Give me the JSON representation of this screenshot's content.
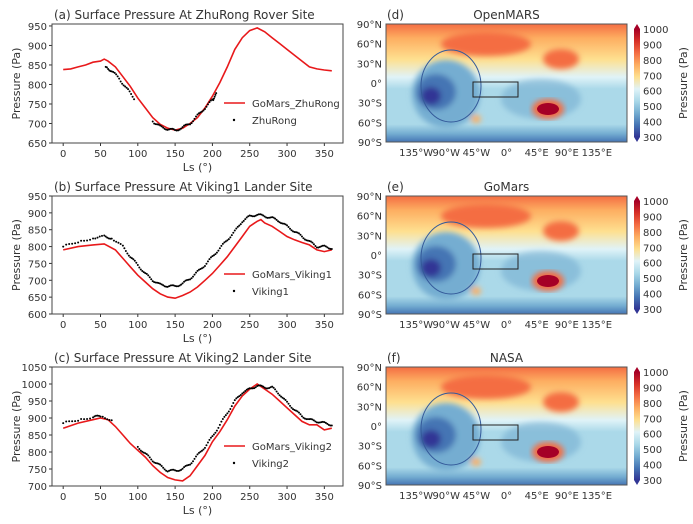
{
  "chart_data": [
    {
      "type": "line",
      "panel": "(a)",
      "title": "Surface Pressure At ZhuRong Rover Site",
      "xlabel": "Ls (°)",
      "ylabel": "Pressure (Pa)",
      "xlim": [
        -15,
        375
      ],
      "ylim": [
        650,
        955
      ],
      "xticks": [
        0,
        50,
        100,
        150,
        200,
        250,
        300,
        350
      ],
      "yticks": [
        650,
        700,
        750,
        800,
        850,
        900,
        950
      ],
      "legend": "lower-right",
      "series": [
        {
          "name": "GoMars_ZhuRong",
          "style": "line",
          "color": "#e8191b",
          "points": [
            [
              0,
              838
            ],
            [
              10,
              840
            ],
            [
              20,
              845
            ],
            [
              30,
              850
            ],
            [
              40,
              857
            ],
            [
              50,
              860
            ],
            [
              55,
              865
            ],
            [
              60,
              860
            ],
            [
              70,
              845
            ],
            [
              80,
              820
            ],
            [
              90,
              795
            ],
            [
              100,
              765
            ],
            [
              110,
              740
            ],
            [
              120,
              715
            ],
            [
              130,
              698
            ],
            [
              140,
              688
            ],
            [
              150,
              683
            ],
            [
              160,
              688
            ],
            [
              170,
              700
            ],
            [
              180,
              715
            ],
            [
              190,
              740
            ],
            [
              200,
              770
            ],
            [
              210,
              805
            ],
            [
              220,
              845
            ],
            [
              230,
              890
            ],
            [
              240,
              920
            ],
            [
              250,
              938
            ],
            [
              260,
              945
            ],
            [
              270,
              935
            ],
            [
              280,
              920
            ],
            [
              290,
              905
            ],
            [
              300,
              890
            ],
            [
              310,
              875
            ],
            [
              320,
              860
            ],
            [
              330,
              845
            ],
            [
              340,
              840
            ],
            [
              350,
              837
            ],
            [
              360,
              835
            ]
          ]
        },
        {
          "name": "ZhuRong",
          "style": "dots",
          "color": "#000000",
          "points": [
            [
              57,
              845
            ],
            [
              65,
              835
            ],
            [
              75,
              815
            ],
            [
              85,
              790
            ],
            [
              95,
              765
            ],
            [
              null,
              null
            ],
            [
              120,
              705
            ],
            [
              130,
              692
            ],
            [
              140,
              686
            ],
            [
              150,
              682
            ],
            [
              160,
              690
            ],
            [
              170,
              700
            ],
            [
              180,
              720
            ],
            [
              190,
              740
            ],
            [
              200,
              760
            ],
            [
              205,
              775
            ]
          ]
        }
      ]
    },
    {
      "type": "line",
      "panel": "(b)",
      "title": "Surface Pressure At Viking1 Lander Site",
      "xlabel": "Ls (°)",
      "ylabel": "Pressure (Pa)",
      "xlim": [
        -15,
        375
      ],
      "ylim": [
        600,
        950
      ],
      "xticks": [
        0,
        50,
        100,
        150,
        200,
        250,
        300,
        350
      ],
      "yticks": [
        600,
        650,
        700,
        750,
        800,
        850,
        900,
        950
      ],
      "legend": "lower-right",
      "series": [
        {
          "name": "GoMars_Viking1",
          "style": "line",
          "color": "#e8191b",
          "points": [
            [
              0,
              790
            ],
            [
              20,
              800
            ],
            [
              40,
              805
            ],
            [
              55,
              808
            ],
            [
              70,
              790
            ],
            [
              80,
              765
            ],
            [
              90,
              740
            ],
            [
              100,
              715
            ],
            [
              110,
              695
            ],
            [
              120,
              675
            ],
            [
              130,
              660
            ],
            [
              140,
              650
            ],
            [
              150,
              647
            ],
            [
              160,
              655
            ],
            [
              170,
              665
            ],
            [
              180,
              680
            ],
            [
              190,
              700
            ],
            [
              200,
              720
            ],
            [
              210,
              745
            ],
            [
              220,
              770
            ],
            [
              230,
              800
            ],
            [
              240,
              830
            ],
            [
              250,
              860
            ],
            [
              260,
              875
            ],
            [
              265,
              880
            ],
            [
              270,
              870
            ],
            [
              280,
              860
            ],
            [
              290,
              845
            ],
            [
              300,
              830
            ],
            [
              310,
              820
            ],
            [
              320,
              812
            ],
            [
              330,
              805
            ],
            [
              340,
              790
            ],
            [
              350,
              785
            ],
            [
              360,
              790
            ]
          ]
        },
        {
          "name": "Viking1",
          "style": "dots",
          "color": "#000000",
          "points": [
            [
              0,
              800
            ],
            [
              20,
              815
            ],
            [
              40,
              825
            ],
            [
              55,
              830
            ],
            [
              65,
              825
            ],
            [
              80,
              800
            ],
            [
              90,
              770
            ],
            [
              100,
              745
            ],
            [
              110,
              720
            ],
            [
              120,
              700
            ],
            [
              130,
              687
            ],
            [
              140,
              683
            ],
            [
              150,
              682
            ],
            [
              160,
              690
            ],
            [
              170,
              705
            ],
            [
              180,
              725
            ],
            [
              190,
              745
            ],
            [
              200,
              770
            ],
            [
              210,
              795
            ],
            [
              220,
              820
            ],
            [
              230,
              845
            ],
            [
              240,
              875
            ],
            [
              250,
              890
            ],
            [
              260,
              895
            ],
            [
              270,
              890
            ],
            [
              280,
              885
            ],
            [
              290,
              875
            ],
            [
              300,
              860
            ],
            [
              310,
              845
            ],
            [
              320,
              830
            ],
            [
              330,
              815
            ],
            [
              340,
              800
            ],
            [
              350,
              800
            ],
            [
              360,
              795
            ]
          ]
        }
      ]
    },
    {
      "type": "line",
      "panel": "(c)",
      "title": "Surface Pressure At Viking2 Lander Site",
      "xlabel": "Ls (°)",
      "ylabel": "Pressure (Pa)",
      "xlim": [
        -15,
        375
      ],
      "ylim": [
        700,
        1050
      ],
      "xticks": [
        0,
        50,
        100,
        150,
        200,
        250,
        300,
        350
      ],
      "yticks": [
        700,
        750,
        800,
        850,
        900,
        950,
        1000,
        1050
      ],
      "legend": "lower-right",
      "series": [
        {
          "name": "GoMars_Viking2",
          "style": "line",
          "color": "#e8191b",
          "points": [
            [
              0,
              870
            ],
            [
              20,
              885
            ],
            [
              40,
              895
            ],
            [
              50,
              900
            ],
            [
              60,
              895
            ],
            [
              70,
              875
            ],
            [
              80,
              850
            ],
            [
              90,
              825
            ],
            [
              100,
              805
            ],
            [
              110,
              785
            ],
            [
              120,
              760
            ],
            [
              130,
              740
            ],
            [
              140,
              725
            ],
            [
              150,
              718
            ],
            [
              160,
              715
            ],
            [
              170,
              730
            ],
            [
              180,
              760
            ],
            [
              190,
              790
            ],
            [
              200,
              830
            ],
            [
              210,
              860
            ],
            [
              220,
              895
            ],
            [
              230,
              935
            ],
            [
              240,
              965
            ],
            [
              250,
              985
            ],
            [
              260,
              1000
            ],
            [
              270,
              985
            ],
            [
              280,
              970
            ],
            [
              290,
              950
            ],
            [
              300,
              930
            ],
            [
              310,
              910
            ],
            [
              320,
              890
            ],
            [
              330,
              880
            ],
            [
              340,
              880
            ],
            [
              350,
              865
            ],
            [
              360,
              870
            ]
          ]
        },
        {
          "name": "Viking2",
          "style": "dots",
          "color": "#000000",
          "points": [
            [
              0,
              885
            ],
            [
              20,
              895
            ],
            [
              40,
              903
            ],
            [
              50,
              905
            ],
            [
              65,
              895
            ],
            [
              null,
              null
            ],
            [
              100,
              815
            ],
            [
              110,
              795
            ],
            [
              120,
              775
            ],
            [
              130,
              760
            ],
            [
              140,
              745
            ],
            [
              150,
              745
            ],
            [
              160,
              750
            ],
            [
              170,
              765
            ],
            [
              180,
              790
            ],
            [
              190,
              815
            ],
            [
              200,
              845
            ],
            [
              210,
              880
            ],
            [
              220,
              915
            ],
            [
              230,
              950
            ],
            [
              240,
              975
            ],
            [
              250,
              985
            ],
            [
              260,
              995
            ],
            [
              270,
              990
            ],
            [
              280,
              990
            ],
            [
              290,
              970
            ],
            [
              300,
              945
            ],
            [
              310,
              925
            ],
            [
              320,
              905
            ],
            [
              330,
              895
            ],
            [
              340,
              890
            ],
            [
              350,
              885
            ],
            [
              360,
              880
            ]
          ]
        }
      ]
    },
    {
      "type": "heatmap",
      "panel": "(d)",
      "title": "OpenMARS",
      "colorbar_label": "Pressure (Pa)",
      "colorbar_ticks": [
        300,
        400,
        500,
        600,
        700,
        800,
        900,
        1000
      ],
      "colormap": "RdYlBu_r",
      "xticks": [
        "135°W",
        "90°W",
        "45°W",
        "0°",
        "45°E",
        "90°E",
        "135°E"
      ],
      "yticks": [
        "90°N",
        "60°N",
        "30°N",
        "0°",
        "30°S",
        "60°S",
        "90°S"
      ]
    },
    {
      "type": "heatmap",
      "panel": "(e)",
      "title": "GoMars",
      "colorbar_label": "Pressure (Pa)",
      "colorbar_ticks": [
        300,
        400,
        500,
        600,
        700,
        800,
        900,
        1000
      ],
      "colormap": "RdYlBu_r",
      "xticks": [
        "135°W",
        "90°W",
        "45°W",
        "0°",
        "45°E",
        "90°E",
        "135°E"
      ],
      "yticks": [
        "90°N",
        "60°N",
        "30°N",
        "0°",
        "30°S",
        "60°S",
        "90°S"
      ]
    },
    {
      "type": "heatmap",
      "panel": "(f)",
      "title": "NASA",
      "colorbar_label": "Pressure (Pa)",
      "colorbar_ticks": [
        300,
        400,
        500,
        600,
        700,
        800,
        900,
        1000
      ],
      "colormap": "RdYlBu_r",
      "xticks": [
        "135°W",
        "90°W",
        "45°W",
        "0°",
        "45°E",
        "90°E",
        "135°E"
      ],
      "yticks": [
        "90°N",
        "60°N",
        "30°N",
        "0°",
        "30°S",
        "60°S",
        "90°S"
      ]
    }
  ]
}
